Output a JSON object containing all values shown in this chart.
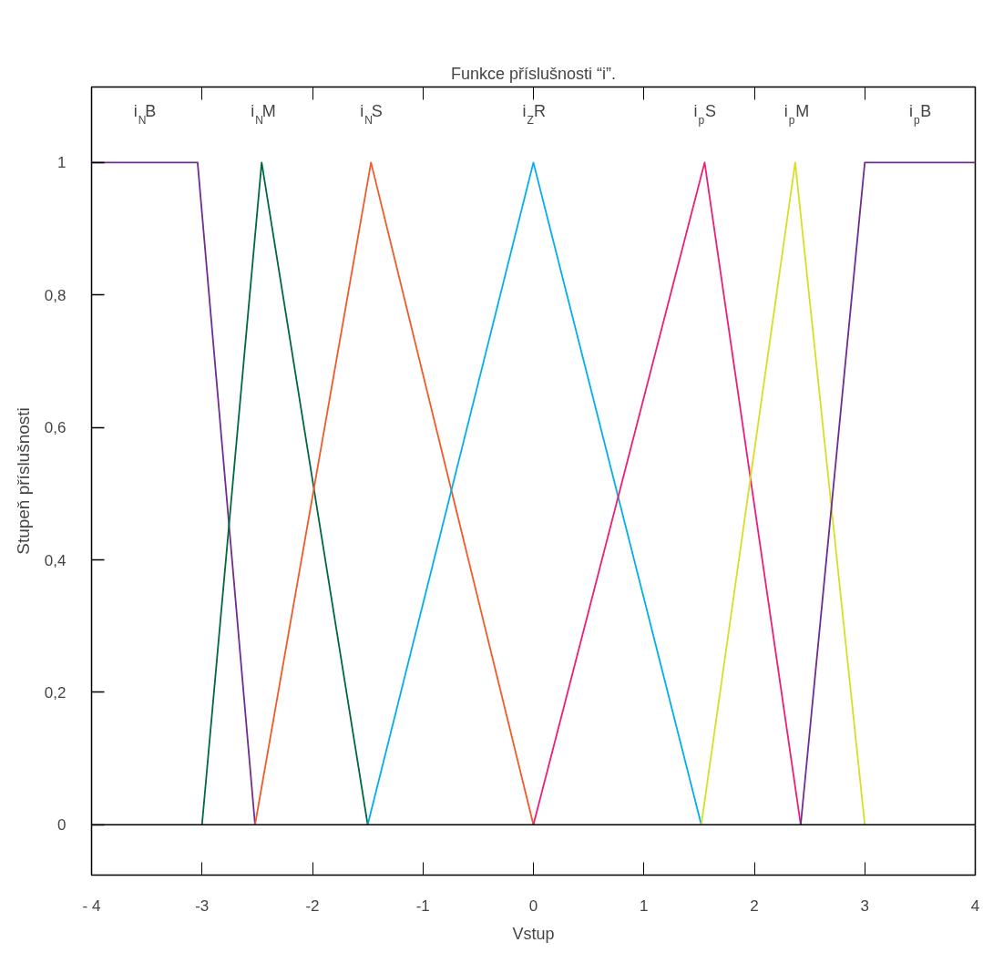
{
  "chart_data": {
    "type": "line",
    "title": "Funkce příslušnosti “i”.",
    "xlabel": "Vstup",
    "ylabel": "Stupeň příslušnosti",
    "xlim": [
      -4,
      4
    ],
    "ylim": [
      -0.076,
      1.114
    ],
    "xticks": [
      {
        "value": -4,
        "label": "- 4"
      },
      -3,
      -2,
      -1,
      0,
      1,
      2,
      3,
      4
    ],
    "yticks": [
      0,
      {
        "value": 0.2,
        "label": "0,2"
      },
      {
        "value": 0.4,
        "label": "0,4"
      },
      {
        "value": 0.6,
        "label": "0,6"
      },
      {
        "value": 0.8,
        "label": "0,8"
      },
      1
    ],
    "ref_lines": [
      {
        "axis": "y",
        "value": 0
      }
    ],
    "grid": false,
    "legend": false,
    "marker": "none",
    "line_style": "solid",
    "series": [
      {
        "name": "i$_{N}$B",
        "color": "#6f2c91",
        "x": [
          -4,
          -3.04,
          -2.52
        ],
        "values": [
          1,
          1,
          0
        ]
      },
      {
        "name": "i$_{N}$M",
        "color": "#00693e",
        "x": [
          -3,
          -2.46,
          -1.5
        ],
        "values": [
          0,
          1,
          0
        ]
      },
      {
        "name": "i$_{N}$S",
        "color": "#f15a29",
        "x": [
          -2.52,
          -1.47,
          0
        ],
        "values": [
          0,
          1,
          0
        ]
      },
      {
        "name": "i$_{Z}$R",
        "color": "#00aeef",
        "x": [
          -1.5,
          0,
          1.52
        ],
        "values": [
          0,
          1,
          0
        ]
      },
      {
        "name": "i$_{p}$S",
        "color": "#ec1e79",
        "x": [
          0,
          1.55,
          2.42
        ],
        "values": [
          0,
          1,
          0
        ]
      },
      {
        "name": "i$_{p}$M",
        "color": "#d7df23",
        "x": [
          1.52,
          2.37,
          3
        ],
        "values": [
          0,
          1,
          0
        ]
      },
      {
        "name": "i$_{p}$B",
        "color": "#6f2c91",
        "x": [
          2.42,
          3,
          4
        ],
        "values": [
          0,
          1,
          1
        ]
      }
    ]
  }
}
